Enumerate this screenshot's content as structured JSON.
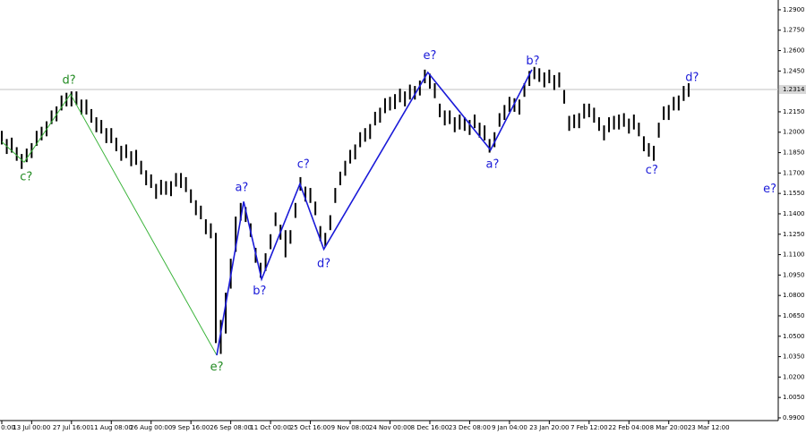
{
  "chart_data": {
    "type": "range",
    "color": "#000000",
    "xlim": [
      0,
      156
    ],
    "ylim": [
      0.988,
      1.2972
    ],
    "xticks": [
      {
        "value": 0,
        "label": "0:00"
      },
      {
        "value": 6,
        "label": "13 Jul 00:00"
      },
      {
        "value": 14,
        "label": "27 Jul 16:00"
      },
      {
        "value": 22,
        "label": "11 Aug 08:00"
      },
      {
        "value": 30,
        "label": "26 Aug 00:00"
      },
      {
        "value": 38,
        "label": "9 Sep 16:00"
      },
      {
        "value": 46,
        "label": "26 Sep 08:00"
      },
      {
        "value": 54,
        "label": "11 Oct 00:00"
      },
      {
        "value": 62,
        "label": "25 Oct 16:00"
      },
      {
        "value": 70,
        "label": "9 Nov 08:00"
      },
      {
        "value": 78,
        "label": "24 Nov 00:00"
      },
      {
        "value": 86,
        "label": "8 Dec 16:00"
      },
      {
        "value": 94,
        "label": "23 Dec 08:00"
      },
      {
        "value": 102,
        "label": "9 Jan 04:00"
      },
      {
        "value": 110,
        "label": "23 Jan 20:00"
      },
      {
        "value": 118,
        "label": "7 Feb 12:00"
      },
      {
        "value": 126,
        "label": "22 Feb 04:00"
      },
      {
        "value": 134,
        "label": "8 Mar 20:00"
      },
      {
        "value": 142,
        "label": "23 Mar 12:00"
      }
    ],
    "yticks": [
      {
        "value": 1.29,
        "label": "1.2900"
      },
      {
        "value": 1.275,
        "label": "1.2750"
      },
      {
        "value": 1.26,
        "label": "1.2600"
      },
      {
        "value": 1.245,
        "label": "1.2450"
      },
      {
        "value": 1.215,
        "label": "1.2150"
      },
      {
        "value": 1.2,
        "label": "1.2000"
      },
      {
        "value": 1.185,
        "label": "1.1850"
      },
      {
        "value": 1.17,
        "label": "1.1700"
      },
      {
        "value": 1.155,
        "label": "1.1550"
      },
      {
        "value": 1.14,
        "label": "1.1400"
      },
      {
        "value": 1.125,
        "label": "1.1250"
      },
      {
        "value": 1.11,
        "label": "1.1100"
      },
      {
        "value": 1.095,
        "label": "1.0950"
      },
      {
        "value": 1.08,
        "label": "1.0800"
      },
      {
        "value": 1.065,
        "label": "1.0650"
      },
      {
        "value": 1.05,
        "label": "1.0500"
      },
      {
        "value": 1.035,
        "label": "1.0350"
      },
      {
        "value": 1.02,
        "label": "1.0200"
      },
      {
        "value": 1.005,
        "label": "1.0050"
      },
      {
        "value": 0.99,
        "label": "0.9900"
      }
    ],
    "current_price": {
      "value": 1.2314,
      "label": "1.2314"
    },
    "high": [
      1.201,
      1.195,
      1.196,
      1.189,
      1.184,
      1.188,
      1.192,
      1.201,
      1.204,
      1.208,
      1.216,
      1.219,
      1.227,
      1.229,
      1.23,
      1.23,
      1.224,
      1.224,
      1.217,
      1.211,
      1.209,
      1.203,
      1.203,
      1.196,
      1.19,
      1.191,
      1.186,
      1.187,
      1.179,
      1.172,
      1.169,
      1.162,
      1.165,
      1.164,
      1.164,
      1.17,
      1.17,
      1.167,
      1.158,
      1.15,
      1.146,
      1.136,
      1.133,
      1.126,
      1.062,
      1.082,
      1.107,
      1.138,
      1.148,
      1.145,
      1.133,
      1.115,
      1.104,
      1.111,
      1.125,
      1.141,
      1.132,
      1.128,
      1.128,
      1.148,
      1.167,
      1.16,
      1.159,
      1.149,
      1.131,
      1.126,
      1.139,
      1.159,
      1.171,
      1.179,
      1.187,
      1.191,
      1.2,
      1.203,
      1.206,
      1.215,
      1.218,
      1.225,
      1.226,
      1.228,
      1.232,
      1.23,
      1.235,
      1.234,
      1.238,
      1.246,
      1.243,
      1.236,
      1.221,
      1.216,
      1.216,
      1.211,
      1.213,
      1.211,
      1.209,
      1.213,
      1.207,
      1.205,
      1.195,
      1.2,
      1.214,
      1.22,
      1.226,
      1.225,
      1.224,
      1.236,
      1.245,
      1.248,
      1.247,
      1.244,
      1.246,
      1.242,
      1.244,
      1.231,
      1.212,
      1.213,
      1.214,
      1.221,
      1.221,
      1.218,
      1.211,
      1.205,
      1.211,
      1.212,
      1.213,
      1.214,
      1.21,
      1.213,
      1.207,
      1.197,
      1.192,
      1.19,
      1.207,
      1.219,
      1.22,
      1.226,
      1.227,
      1.234,
      1.236
    ],
    "low": [
      1.191,
      1.184,
      1.185,
      1.179,
      1.173,
      1.178,
      1.181,
      1.19,
      1.194,
      1.197,
      1.206,
      1.208,
      1.216,
      1.219,
      1.219,
      1.22,
      1.213,
      1.213,
      1.207,
      1.2,
      1.199,
      1.192,
      1.192,
      1.186,
      1.179,
      1.181,
      1.175,
      1.176,
      1.169,
      1.161,
      1.159,
      1.151,
      1.154,
      1.154,
      1.153,
      1.16,
      1.159,
      1.156,
      1.148,
      1.139,
      1.136,
      1.125,
      1.122,
      1.045,
      1.037,
      1.052,
      1.085,
      1.112,
      1.135,
      1.134,
      1.123,
      1.104,
      1.093,
      1.098,
      1.114,
      1.131,
      1.121,
      1.108,
      1.118,
      1.137,
      1.157,
      1.149,
      1.148,
      1.139,
      1.12,
      1.116,
      1.128,
      1.148,
      1.161,
      1.168,
      1.177,
      1.18,
      1.189,
      1.193,
      1.195,
      1.205,
      1.207,
      1.214,
      1.216,
      1.217,
      1.222,
      1.219,
      1.224,
      1.224,
      1.227,
      1.236,
      1.232,
      1.225,
      1.211,
      1.205,
      1.206,
      1.2,
      1.202,
      1.201,
      1.198,
      1.203,
      1.196,
      1.194,
      1.185,
      1.189,
      1.204,
      1.209,
      1.215,
      1.215,
      1.213,
      1.226,
      1.234,
      1.239,
      1.237,
      1.233,
      1.236,
      1.231,
      1.233,
      1.221,
      1.201,
      1.203,
      1.203,
      1.21,
      1.211,
      1.207,
      1.201,
      1.194,
      1.2,
      1.202,
      1.202,
      1.204,
      1.199,
      1.202,
      1.197,
      1.186,
      1.182,
      1.179,
      1.196,
      1.209,
      1.209,
      1.216,
      1.216,
      1.223,
      1.226
    ],
    "waves": [
      {
        "color": "#3cb43c",
        "x": [
          0,
          4.5,
          13.8,
          43.2
        ],
        "y": [
          1.193,
          1.178,
          1.228,
          1.036
        ]
      },
      {
        "color": "#1a1ad8",
        "x": [
          43.2,
          48.6,
          52.2,
          59.9,
          64.7,
          85.6,
          98.2,
          106.5
        ],
        "y": [
          1.036,
          1.149,
          1.092,
          1.162,
          1.114,
          1.244,
          1.187,
          1.246
        ]
      }
    ],
    "annotations": [
      {
        "text": "c?",
        "x": 4.9,
        "y": 1.167,
        "color": "#228b22"
      },
      {
        "text": "d?",
        "x": 13.5,
        "y": 1.238,
        "color": "#228b22"
      },
      {
        "text": "e?",
        "x": 43.2,
        "y": 1.027,
        "color": "#228b22"
      },
      {
        "text": "a?",
        "x": 48.2,
        "y": 1.159,
        "color": "#1a1ad8"
      },
      {
        "text": "b?",
        "x": 51.8,
        "y": 1.083,
        "color": "#1a1ad8"
      },
      {
        "text": "c?",
        "x": 60.6,
        "y": 1.176,
        "color": "#1a1ad8"
      },
      {
        "text": "d?",
        "x": 64.7,
        "y": 1.103,
        "color": "#1a1ad8"
      },
      {
        "text": "e?",
        "x": 86,
        "y": 1.256,
        "color": "#1a1ad8"
      },
      {
        "text": "a?",
        "x": 98.6,
        "y": 1.176,
        "color": "#1a1ad8"
      },
      {
        "text": "b?",
        "x": 106.7,
        "y": 1.252,
        "color": "#1a1ad8"
      },
      {
        "text": "c?",
        "x": 130.6,
        "y": 1.172,
        "color": "#1a1ad8"
      },
      {
        "text": "d?",
        "x": 138.7,
        "y": 1.24,
        "color": "#1a1ad8"
      },
      {
        "text": "e?",
        "x": 154.3,
        "y": 1.158,
        "color": "#1a1ad8"
      }
    ]
  }
}
